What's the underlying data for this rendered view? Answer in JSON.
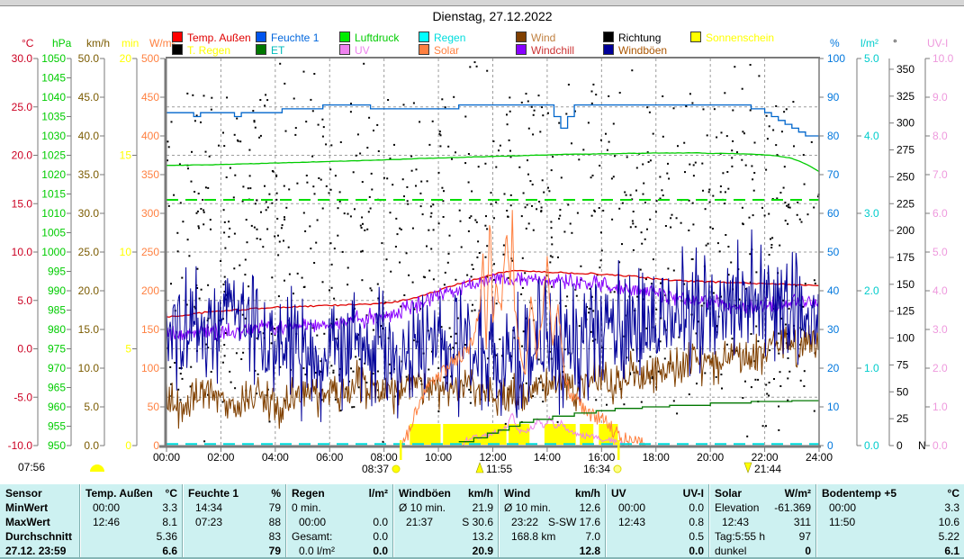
{
  "title": "Dienstag, 27.12.2022",
  "legend": {
    "row1": [
      {
        "label": "Temp. Außen",
        "box": "#ff0000",
        "text": "#e00000"
      },
      {
        "label": "Feuchte 1",
        "box": "#0055ee",
        "text": "#0066dd"
      },
      {
        "label": "Luftdruck",
        "box": "#00ee00",
        "text": "#00cc00"
      },
      {
        "label": "Regen",
        "box": "#00ffff",
        "text": "#00dddd"
      },
      {
        "label": "Wind",
        "box": "#804000",
        "text": "#c08040"
      },
      {
        "label": "Richtung",
        "box": "#000000",
        "text": "#000000"
      },
      {
        "label": "Sonnenschein",
        "box": "#ffff00",
        "text": "#ffff00"
      }
    ],
    "row2": [
      {
        "label": "T. Regen",
        "box": "#000000",
        "text": "#ffff00"
      },
      {
        "label": "ET",
        "box": "#007700",
        "text": "#00bbbb"
      },
      {
        "label": "UV",
        "box": "#ee82ee",
        "text": "#ee82ee"
      },
      {
        "label": "Solar",
        "box": "#ff8040",
        "text": "#ff8040"
      },
      {
        "label": "Windchill",
        "box": "#8800ff",
        "text": "#cc3333"
      },
      {
        "label": "Windböen",
        "box": "#000099",
        "text": "#aa5500"
      }
    ]
  },
  "chart_data": {
    "type": "line",
    "title": "Dienstag, 27.12.2022",
    "x_range_hours": [
      0,
      24
    ],
    "x_ticks": [
      "00:00",
      "02:00",
      "04:00",
      "06:00",
      "08:00",
      "10:00",
      "12:00",
      "14:00",
      "16:00",
      "18:00",
      "20:00",
      "22:00",
      "24:00"
    ],
    "grid": "dashed",
    "axes": {
      "temp_c": {
        "unit": "°C",
        "min": -10,
        "max": 30,
        "step": 5,
        "decimals": 1,
        "color": "#cc0022",
        "side": "left"
      },
      "pressure_hpa": {
        "unit": "hPa",
        "min": 950,
        "max": 1050,
        "step": 5,
        "decimals": 0,
        "color": "#00cc00",
        "side": "left"
      },
      "wind_kmh": {
        "unit": "km/h",
        "min": 0,
        "max": 50,
        "step": 5,
        "decimals": 1,
        "color": "#7b5b00",
        "side": "left"
      },
      "sunshine_min": {
        "unit": "min",
        "min": 0,
        "max": 20,
        "step": 5,
        "decimals": 0,
        "color": "#ffff00",
        "side": "left"
      },
      "solar_wm2": {
        "unit": "W/m²",
        "min": 0,
        "max": 500,
        "step": 50,
        "decimals": 0,
        "color": "#ff8040",
        "side": "left"
      },
      "humidity_pct": {
        "unit": "%",
        "min": 0,
        "max": 100,
        "step": 10,
        "decimals": 0,
        "color": "#0077dd",
        "side": "right"
      },
      "rain_lm2": {
        "unit": "l/m²",
        "min": 0,
        "max": 5,
        "step": 1,
        "decimals": 1,
        "color": "#00cccc",
        "side": "right"
      },
      "direction_deg": {
        "unit": "°",
        "min": 0,
        "max": 360,
        "step": 25,
        "decimals": 0,
        "color": "#000000",
        "side": "right",
        "max_label": 350,
        "extra_label": "N"
      },
      "uv_index": {
        "unit": "UV-I",
        "min": 0,
        "max": 10,
        "step": 1,
        "decimals": 1,
        "color": "#ee99dd",
        "side": "right"
      }
    },
    "sample_interval_hours": 0.5,
    "series": [
      {
        "name": "Temp. Außen",
        "axis": "temp_c",
        "color": "#e00000",
        "mode": "line",
        "jitter": 0.08,
        "values": [
          3.3,
          3.4,
          3.6,
          3.8,
          3.9,
          4.0,
          4.1,
          4.2,
          4.3,
          4.3,
          4.4,
          4.4,
          4.5,
          4.5,
          4.6,
          4.6,
          4.7,
          4.9,
          5.2,
          5.6,
          6.0,
          6.5,
          6.9,
          7.3,
          7.7,
          8.0,
          8.1,
          8.0,
          7.9,
          7.9,
          7.8,
          7.8,
          7.7,
          7.6,
          7.5,
          7.4,
          7.2,
          7.1,
          7.0,
          7.0,
          6.9,
          6.9,
          6.8,
          6.8,
          6.7,
          6.7,
          6.6,
          6.6,
          6.6
        ]
      },
      {
        "name": "Windchill",
        "axis": "temp_c",
        "color": "#8800ff",
        "mode": "noisy-line",
        "noise": 1.1,
        "values": [
          1.6,
          1.4,
          1.7,
          1.9,
          1.6,
          1.8,
          2.0,
          2.2,
          2.1,
          2.3,
          2.4,
          2.5,
          2.6,
          2.8,
          3.0,
          3.2,
          3.4,
          3.8,
          4.3,
          4.8,
          5.3,
          5.8,
          6.3,
          6.7,
          7.1,
          7.3,
          7.3,
          7.2,
          7.1,
          7.0,
          6.9,
          6.7,
          6.5,
          6.3,
          6.1,
          5.8,
          5.6,
          5.4,
          5.2,
          5.0,
          4.8,
          4.6,
          4.4,
          4.3,
          4.5,
          4.6,
          4.8,
          4.9,
          5.0
        ]
      },
      {
        "name": "Feuchte 1",
        "axis": "humidity_pct",
        "color": "#0066cc",
        "mode": "step-line",
        "values": [
          86,
          86,
          85,
          86,
          86,
          85,
          86,
          86,
          86,
          87,
          87,
          87,
          88,
          88,
          88,
          87,
          87,
          87,
          87,
          87,
          87,
          87,
          88,
          88,
          88,
          88,
          88,
          88,
          88,
          82,
          88,
          88,
          88,
          88,
          88,
          88,
          88,
          88,
          88,
          88,
          88,
          88,
          88,
          87,
          86,
          84,
          82,
          80,
          79
        ]
      },
      {
        "name": "Luftdruck",
        "axis": "pressure_hpa",
        "color": "#00cc00",
        "mode": "line",
        "jitter": 0.05,
        "values": [
          1022.4,
          1022.4,
          1022.5,
          1022.5,
          1022.6,
          1022.7,
          1022.8,
          1022.9,
          1023.0,
          1023.1,
          1023.2,
          1023.3,
          1023.4,
          1023.5,
          1023.6,
          1023.7,
          1023.8,
          1023.9,
          1024.1,
          1024.2,
          1024.3,
          1024.4,
          1024.5,
          1024.6,
          1024.7,
          1024.8,
          1024.9,
          1025.0,
          1025.1,
          1025.2,
          1025.3,
          1025.3,
          1025.4,
          1025.4,
          1025.5,
          1025.5,
          1025.6,
          1025.6,
          1025.6,
          1025.6,
          1025.5,
          1025.5,
          1025.4,
          1025.3,
          1025.1,
          1024.8,
          1024.2,
          1022.8,
          1020.8
        ]
      },
      {
        "name": "Luftdruck Referenz",
        "axis": "pressure_hpa",
        "color": "#00dd00",
        "mode": "dashed-flat",
        "value": 1013.5
      },
      {
        "name": "Wind",
        "axis": "wind_kmh",
        "color": "#804000",
        "mode": "noisy-line",
        "noise": 3.4,
        "floor": 0.5,
        "values": [
          6,
          5,
          6,
          7,
          6,
          5,
          6,
          6,
          5,
          6,
          6,
          7,
          7,
          7,
          8,
          7,
          7,
          7,
          8,
          7,
          7,
          7,
          8,
          7,
          7,
          6,
          7,
          7,
          8,
          8,
          7,
          8,
          9,
          8,
          9,
          9,
          10,
          10,
          11,
          11,
          10,
          11,
          12,
          11,
          12,
          13,
          13,
          13,
          12.8
        ]
      },
      {
        "name": "Windböen",
        "axis": "wind_kmh",
        "color": "#000099",
        "mode": "noisy-line",
        "noise": 10,
        "floor": 1.5,
        "max_clamp": 30.6,
        "values": [
          15,
          16,
          17,
          15,
          16,
          18,
          17,
          15,
          14,
          13,
          12,
          12,
          12,
          12,
          13,
          12,
          12,
          12,
          13,
          12,
          12,
          12,
          13,
          13,
          12,
          12,
          12,
          13,
          13,
          13,
          13,
          14,
          14,
          15,
          15,
          15,
          15,
          16,
          17,
          17,
          17,
          18,
          19,
          20,
          18,
          17,
          17,
          16,
          15
        ]
      },
      {
        "name": "Solar",
        "axis": "solar_wm2",
        "color": "#ff8040",
        "mode": "points-line",
        "noise": 10,
        "points": [
          [
            0,
            0
          ],
          [
            8.6,
            0
          ],
          [
            8.8,
            8
          ],
          [
            9.0,
            25
          ],
          [
            9.3,
            55
          ],
          [
            9.6,
            75
          ],
          [
            10.0,
            90
          ],
          [
            10.3,
            100
          ],
          [
            10.6,
            110
          ],
          [
            11.0,
            120
          ],
          [
            11.3,
            140
          ],
          [
            11.5,
            170
          ],
          [
            11.65,
            260
          ],
          [
            11.75,
            120
          ],
          [
            11.9,
            300
          ],
          [
            12.0,
            150
          ],
          [
            12.1,
            210
          ],
          [
            12.3,
            170
          ],
          [
            12.5,
            280
          ],
          [
            12.65,
            200
          ],
          [
            12.72,
            311
          ],
          [
            12.8,
            180
          ],
          [
            13.0,
            120
          ],
          [
            13.2,
            90
          ],
          [
            13.4,
            200
          ],
          [
            13.6,
            120
          ],
          [
            13.8,
            160
          ],
          [
            14.0,
            240
          ],
          [
            14.2,
            130
          ],
          [
            14.4,
            180
          ],
          [
            14.6,
            100
          ],
          [
            14.8,
            70
          ],
          [
            15.0,
            60
          ],
          [
            15.3,
            50
          ],
          [
            15.6,
            40
          ],
          [
            16.0,
            35
          ],
          [
            16.3,
            25
          ],
          [
            16.6,
            15
          ],
          [
            17.0,
            6
          ],
          [
            17.4,
            2
          ],
          [
            17.6,
            0
          ],
          [
            24,
            0
          ]
        ]
      },
      {
        "name": "UV",
        "axis": "uv_index",
        "color": "#ee82ee",
        "mode": "points-line",
        "noise": 0.07,
        "points": [
          [
            0,
            0
          ],
          [
            10.9,
            0
          ],
          [
            11.0,
            0.15
          ],
          [
            11.3,
            0.2
          ],
          [
            11.6,
            0.25
          ],
          [
            11.9,
            0.3
          ],
          [
            12.2,
            0.35
          ],
          [
            12.5,
            0.5
          ],
          [
            12.72,
            0.8
          ],
          [
            12.9,
            0.4
          ],
          [
            13.2,
            0.35
          ],
          [
            13.5,
            0.5
          ],
          [
            13.7,
            0.7
          ],
          [
            13.9,
            0.45
          ],
          [
            14.1,
            0.7
          ],
          [
            14.3,
            0.5
          ],
          [
            14.5,
            0.6
          ],
          [
            14.7,
            0.4
          ],
          [
            15.0,
            0.3
          ],
          [
            15.4,
            0.25
          ],
          [
            15.8,
            0.2
          ],
          [
            16.2,
            0.15
          ],
          [
            16.5,
            0.1
          ],
          [
            16.8,
            0
          ],
          [
            24,
            0
          ]
        ]
      },
      {
        "name": "ET",
        "axis": "rain_lm2",
        "color": "#007700",
        "mode": "step-points",
        "points": [
          [
            10.75,
            0.05
          ],
          [
            11.3,
            0.1
          ],
          [
            11.8,
            0.16
          ],
          [
            12.2,
            0.2
          ],
          [
            12.6,
            0.25
          ],
          [
            13.0,
            0.3
          ],
          [
            13.5,
            0.34
          ],
          [
            14.2,
            0.38
          ],
          [
            15.0,
            0.42
          ],
          [
            15.8,
            0.45
          ],
          [
            16.5,
            0.48
          ],
          [
            17.5,
            0.5
          ],
          [
            18.5,
            0.52
          ],
          [
            20.0,
            0.55
          ],
          [
            21.5,
            0.57
          ],
          [
            23.0,
            0.58
          ],
          [
            24,
            0.58
          ]
        ]
      },
      {
        "name": "Sonnenschein",
        "axis": "sunshine_min",
        "color": "#ffff00",
        "mode": "intervals",
        "intervals": [
          [
            8.95,
            10.08
          ],
          [
            10.17,
            12.5
          ],
          [
            12.58,
            13.35
          ],
          [
            13.9,
            15.05
          ],
          [
            15.2,
            15.7
          ],
          [
            15.9,
            16.6
          ]
        ]
      },
      {
        "name": "Richtung",
        "axis": "direction_deg",
        "color": "#000000",
        "mode": "scatter-random",
        "count": 1000,
        "seed": 11
      },
      {
        "name": "Regen",
        "axis": "rain_lm2",
        "color": "#00dddd",
        "mode": "dashed-flat",
        "value": 0.02
      },
      {
        "name": "T. Regen",
        "axis": "temp_c",
        "color": "#000000",
        "mode": "none"
      }
    ],
    "sun_moon": {
      "bottom_left_time": "07:56",
      "sunrise": "08:37",
      "moonrise": "11:55",
      "sunset": "16:34",
      "moonset": "21:44",
      "day_length": "5:55 h"
    }
  },
  "table": {
    "row_labels": [
      "MinWert",
      "MaxWert",
      "Durchschnitt",
      "27.12. 23:59"
    ],
    "sensor_header": "Sensor",
    "columns": [
      {
        "header": "Temp. Außen",
        "unit": "°C",
        "cells": [
          [
            "00:00",
            "3.3"
          ],
          [
            "12:46",
            "8.1"
          ],
          [
            "",
            "5.36"
          ],
          [
            "",
            "6.6"
          ]
        ],
        "indent": [
          true,
          true,
          false,
          false
        ]
      },
      {
        "header": "Feuchte 1",
        "unit": "%",
        "cells": [
          [
            "14:34",
            "79"
          ],
          [
            "07:23",
            "88"
          ],
          [
            "",
            "83"
          ],
          [
            "",
            "79"
          ]
        ],
        "indent": [
          true,
          true,
          false,
          false
        ]
      },
      {
        "header": "Regen",
        "unit": "l/m²",
        "cells": [
          [
            "0 min.",
            ""
          ],
          [
            "00:00",
            "0.0"
          ],
          [
            "Gesamt:",
            "0.0"
          ],
          [
            "0.0 l/m²",
            "0.0"
          ]
        ],
        "indent": [
          false,
          true,
          false,
          true
        ]
      },
      {
        "header": "Windböen",
        "unit": "km/h",
        "cells": [
          [
            "Ø 10 min.",
            "21.9"
          ],
          [
            "21:37",
            "S 30.6"
          ],
          [
            "",
            "13.2"
          ],
          [
            "",
            "20.9"
          ]
        ],
        "indent": [
          false,
          true,
          false,
          false
        ]
      },
      {
        "header": "Wind",
        "unit": "km/h",
        "cells": [
          [
            "Ø 10 min.",
            "12.6"
          ],
          [
            "23:22",
            "S-SW 17.6"
          ],
          [
            "168.8 km",
            "7.0"
          ],
          [
            "",
            "12.8"
          ]
        ],
        "indent": [
          false,
          true,
          true,
          false
        ]
      },
      {
        "header": "UV",
        "unit": "UV-I",
        "cells": [
          [
            "00:00",
            "0.0"
          ],
          [
            "12:43",
            "0.8"
          ],
          [
            "",
            "0.5"
          ],
          [
            "",
            "0.0"
          ]
        ],
        "indent": [
          true,
          true,
          false,
          false
        ]
      },
      {
        "header": "Solar",
        "unit": "W/m²",
        "cells": [
          [
            "Elevation",
            "-61.369"
          ],
          [
            "12:43",
            "311"
          ],
          [
            "Tag:5:55 h",
            "97"
          ],
          [
            "dunkel",
            "0"
          ]
        ],
        "indent": [
          false,
          true,
          false,
          false
        ]
      },
      {
        "header": "Bodentemp +5",
        "unit": "°C",
        "cells": [
          [
            "00:00",
            "3.3"
          ],
          [
            "11:50",
            "10.6"
          ],
          [
            "",
            "5.22"
          ],
          [
            "",
            "6.1"
          ]
        ],
        "indent": [
          true,
          true,
          false,
          false
        ]
      }
    ]
  }
}
